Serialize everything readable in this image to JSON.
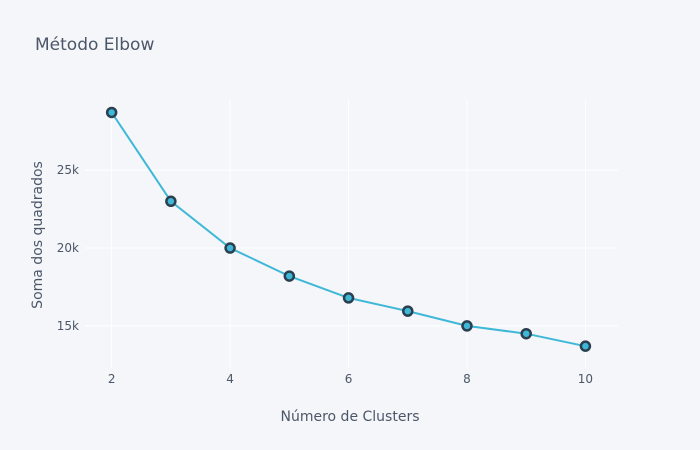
{
  "chart_data": {
    "type": "line",
    "title": "Método Elbow",
    "xlabel": "Número de Clusters",
    "ylabel": "Soma dos quadrados",
    "x": [
      2,
      3,
      4,
      5,
      6,
      7,
      8,
      9,
      10
    ],
    "series": [
      {
        "values": [
          28700,
          23000,
          20000,
          18200,
          16800,
          15950,
          15000,
          14500,
          13700
        ]
      }
    ],
    "xlim": [
      1.55,
      10.55
    ],
    "ylim": [
      12300,
      29500
    ],
    "xticks": [
      2,
      4,
      6,
      8,
      10
    ],
    "xtick_labels": [
      "2",
      "4",
      "6",
      "8",
      "10"
    ],
    "yticks": [
      15000,
      20000,
      25000
    ],
    "ytick_labels": [
      "15k",
      "20k",
      "25k"
    ],
    "grid": true,
    "mode": "lines+markers",
    "colors": {
      "line": "#3fb8d8",
      "marker_fill": "#3fb8d8",
      "marker_edge": "#2a3f4f",
      "grid": "#ffffff",
      "background": "#f5f6fa",
      "text": "#4b5768"
    }
  }
}
